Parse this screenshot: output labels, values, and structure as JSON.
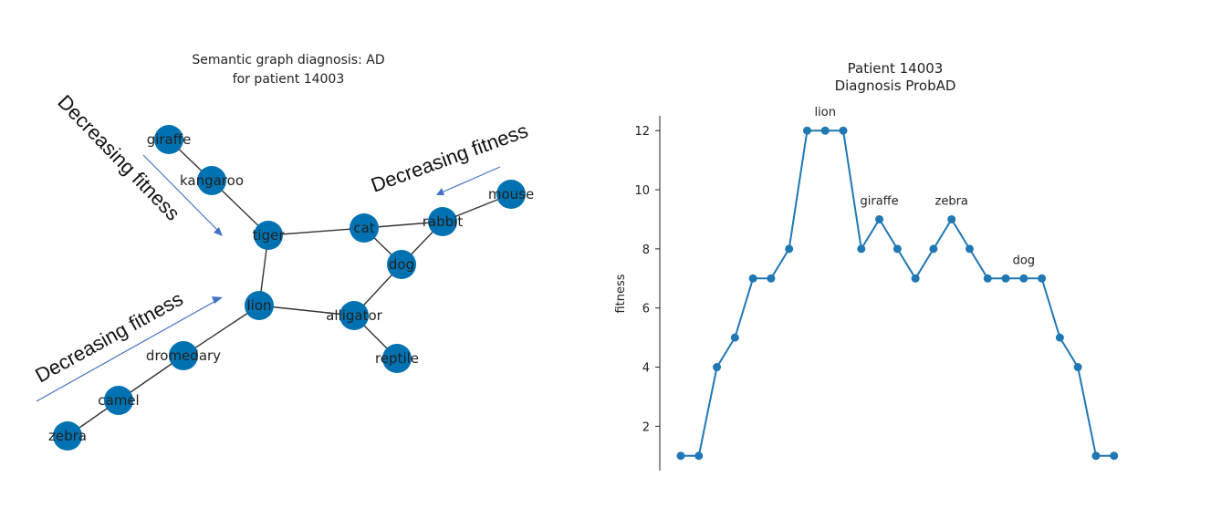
{
  "left_panel": {
    "title_line1": "Semantic graph diagnosis: AD",
    "title_line2": "for patient 14003",
    "annotations": [
      "Decreasing fitness",
      "Decreasing fitness",
      "Decreasing fitness"
    ],
    "node_color": "#0072b2",
    "edge_color": "#333333",
    "arrow_color": "#4472c4"
  },
  "chart_data": [
    {
      "type": "network",
      "title": "Semantic graph diagnosis: AD\nfor patient 14003",
      "nodes": [
        "giraffe",
        "kangaroo",
        "tiger",
        "cat",
        "rabbit",
        "mouse",
        "dog",
        "lion",
        "alligator",
        "reptile",
        "dromedary",
        "camel",
        "zebra"
      ],
      "edges": [
        [
          "giraffe",
          "kangaroo"
        ],
        [
          "kangaroo",
          "tiger"
        ],
        [
          "tiger",
          "cat"
        ],
        [
          "tiger",
          "lion"
        ],
        [
          "cat",
          "rabbit"
        ],
        [
          "cat",
          "dog"
        ],
        [
          "rabbit",
          "dog"
        ],
        [
          "rabbit",
          "mouse"
        ],
        [
          "dog",
          "alligator"
        ],
        [
          "lion",
          "alligator"
        ],
        [
          "alligator",
          "reptile"
        ],
        [
          "lion",
          "dromedary"
        ],
        [
          "dromedary",
          "camel"
        ],
        [
          "camel",
          "zebra"
        ]
      ]
    },
    {
      "type": "line",
      "title": "Patient 14003\nDiagnosis ProbAD",
      "xlabel": "",
      "ylabel": "fitness",
      "x": [
        0,
        1,
        2,
        3,
        4,
        5,
        6,
        7,
        8,
        9,
        10,
        11,
        12,
        13,
        14,
        15,
        16,
        17,
        18,
        19,
        20,
        21,
        22,
        23,
        24
      ],
      "values": [
        1,
        1,
        4,
        5,
        7,
        7,
        8,
        12,
        12,
        12,
        8,
        9,
        8,
        7,
        8,
        9,
        8,
        7,
        7,
        7,
        7,
        5,
        4,
        1,
        1
      ],
      "ylim": [
        0.5,
        12.5
      ],
      "yticks": [
        2,
        4,
        6,
        8,
        10,
        12
      ],
      "point_labels": [
        {
          "index": 8,
          "text": "lion"
        },
        {
          "index": 11,
          "text": "giraffe"
        },
        {
          "index": 15,
          "text": "zebra"
        },
        {
          "index": 19,
          "text": "dog"
        }
      ],
      "color": "#1f77b4",
      "grid": false
    }
  ]
}
